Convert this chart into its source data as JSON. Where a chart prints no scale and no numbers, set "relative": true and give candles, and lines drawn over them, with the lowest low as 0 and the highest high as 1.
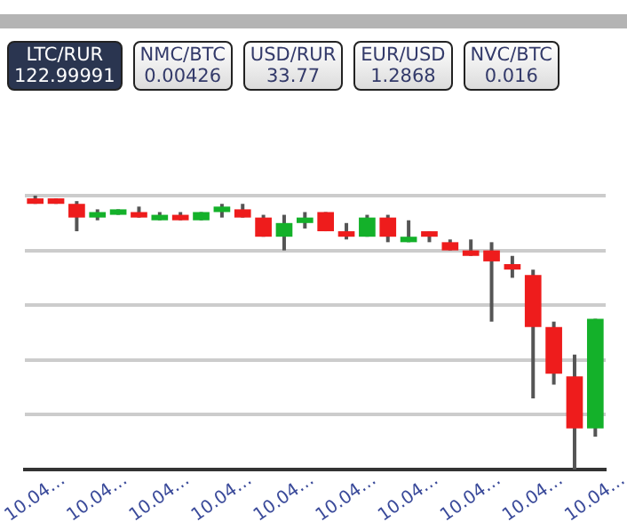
{
  "chart_data": {
    "type": "candlestick",
    "relative": true,
    "grid": "y",
    "tick_labels": "x",
    "annotations": [
      "LTC/RUR\n122.99991",
      "NMC/BTC\n0.00426",
      "USD/RUR\n33.77",
      "EUR/USD\n1.2868",
      "NVC/BTC\n0.016"
    ],
    "categories": [
      "10.04…",
      null,
      null,
      "10.04…",
      null,
      null,
      "10.04…",
      null,
      null,
      "10.04…",
      null,
      null,
      "10.04…",
      null,
      null,
      "10.04…",
      null,
      null,
      "10.04…",
      null,
      null,
      "10.04…",
      null,
      null,
      "10.04…",
      null,
      null,
      "10.04…"
    ],
    "ohlc": [
      [
        0.99,
        1.0,
        0.97,
        0.97
      ],
      [
        0.99,
        0.99,
        0.97,
        0.97
      ],
      [
        0.97,
        0.98,
        0.87,
        0.92
      ],
      [
        0.92,
        0.95,
        0.91,
        0.94
      ],
      [
        0.93,
        0.95,
        0.93,
        0.95
      ],
      [
        0.94,
        0.96,
        0.92,
        0.92
      ],
      [
        0.91,
        0.94,
        0.91,
        0.93
      ],
      [
        0.93,
        0.94,
        0.91,
        0.91
      ],
      [
        0.91,
        0.94,
        0.91,
        0.94
      ],
      [
        0.94,
        0.97,
        0.92,
        0.96
      ],
      [
        0.95,
        0.97,
        0.92,
        0.92
      ],
      [
        0.92,
        0.93,
        0.85,
        0.85
      ],
      [
        0.85,
        0.93,
        0.8,
        0.9
      ],
      [
        0.9,
        0.94,
        0.88,
        0.92
      ],
      [
        0.94,
        0.94,
        0.87,
        0.87
      ],
      [
        0.87,
        0.9,
        0.84,
        0.85
      ],
      [
        0.85,
        0.93,
        0.85,
        0.92
      ],
      [
        0.92,
        0.93,
        0.83,
        0.85
      ],
      [
        0.83,
        0.91,
        0.83,
        0.85
      ],
      [
        0.87,
        0.87,
        0.83,
        0.85
      ],
      [
        0.83,
        0.84,
        0.8,
        0.8
      ],
      [
        0.8,
        0.84,
        0.78,
        0.78
      ],
      [
        0.8,
        0.83,
        0.54,
        0.76
      ],
      [
        0.75,
        0.78,
        0.7,
        0.73
      ],
      [
        0.71,
        0.73,
        0.26,
        0.52
      ],
      [
        0.52,
        0.54,
        0.31,
        0.35
      ],
      [
        0.34,
        0.42,
        0.0,
        0.15
      ],
      [
        0.15,
        0.55,
        0.12,
        0.55
      ]
    ]
  }
}
